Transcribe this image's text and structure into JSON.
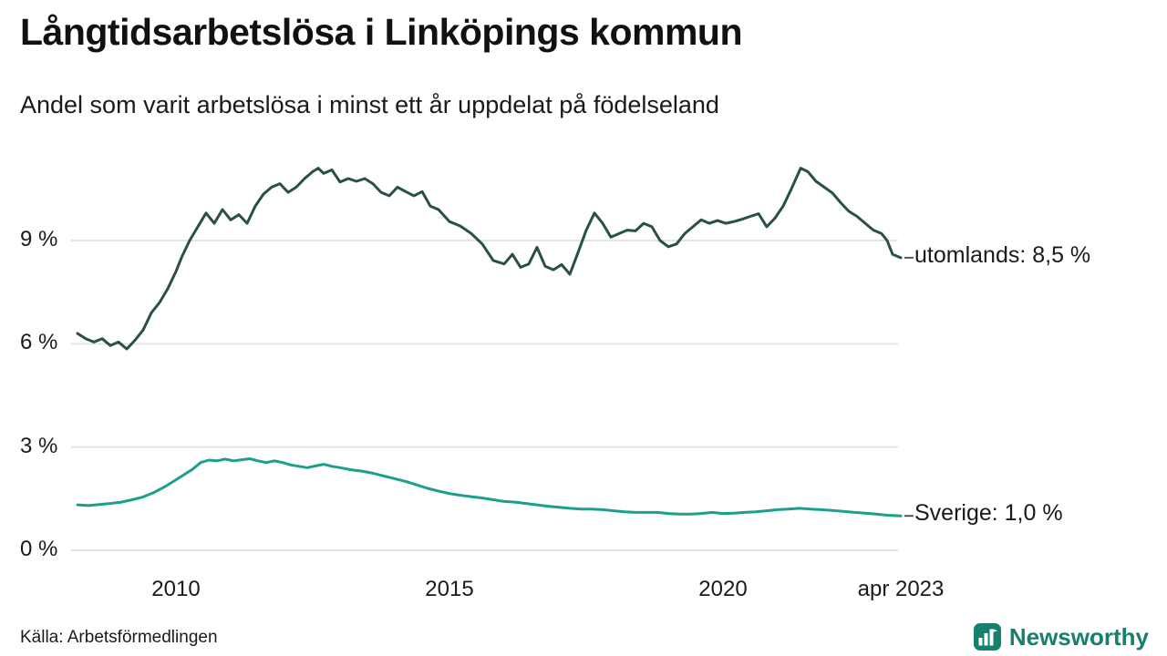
{
  "header": {
    "title": "Långtidsarbetslösa i Linköpings kommun",
    "subtitle": "Andel som varit arbetslösa i minst ett år uppdelat på födelseland"
  },
  "footer": {
    "source": "Källa: Arbetsförmedlingen",
    "brand": "Newsworthy"
  },
  "colors": {
    "utomlands_line": "#2a4f47",
    "sverige_line": "#1aa08b",
    "brand_teal": "#17806c",
    "gridline": "#e4e4e4",
    "text": "#1a1a1a"
  },
  "chart_data": {
    "type": "line",
    "title": "Långtidsarbetslösa i Linköpings kommun",
    "subtitle": "Andel som varit arbetslösa i minst ett år uppdelat på födelseland",
    "unit": "%",
    "grid": "horizontal",
    "legend_position": "right-of-line-ends",
    "x_axis": {
      "range": [
        2008.2,
        2023.42
      ],
      "ticks": [
        {
          "label": "2010",
          "value": 2010
        },
        {
          "label": "2015",
          "value": 2015
        },
        {
          "label": "2020",
          "value": 2020
        },
        {
          "label": "apr 2023",
          "value": 2023.25
        }
      ]
    },
    "y_axis": {
      "range": [
        0,
        11.6
      ],
      "ticks": [
        {
          "label": "0 %",
          "value": 0
        },
        {
          "label": "3 %",
          "value": 3
        },
        {
          "label": "6 %",
          "value": 6
        },
        {
          "label": "9 %",
          "value": 9
        }
      ]
    },
    "series": [
      {
        "name": "utomlands",
        "end_label": "utomlands: 8,5 %",
        "last_value": 8.5,
        "color": "#2a4f47",
        "points": [
          [
            2008.2,
            6.3
          ],
          [
            2008.35,
            6.15
          ],
          [
            2008.5,
            6.05
          ],
          [
            2008.65,
            6.15
          ],
          [
            2008.8,
            5.95
          ],
          [
            2008.95,
            6.05
          ],
          [
            2009.1,
            5.85
          ],
          [
            2009.25,
            6.1
          ],
          [
            2009.4,
            6.4
          ],
          [
            2009.55,
            6.9
          ],
          [
            2009.7,
            7.2
          ],
          [
            2009.85,
            7.6
          ],
          [
            2010.0,
            8.1
          ],
          [
            2010.1,
            8.5
          ],
          [
            2010.25,
            9.0
          ],
          [
            2010.4,
            9.4
          ],
          [
            2010.55,
            9.8
          ],
          [
            2010.7,
            9.5
          ],
          [
            2010.85,
            9.9
          ],
          [
            2011.0,
            9.6
          ],
          [
            2011.15,
            9.75
          ],
          [
            2011.3,
            9.5
          ],
          [
            2011.45,
            10.0
          ],
          [
            2011.6,
            10.35
          ],
          [
            2011.75,
            10.55
          ],
          [
            2011.9,
            10.65
          ],
          [
            2012.05,
            10.4
          ],
          [
            2012.2,
            10.55
          ],
          [
            2012.35,
            10.8
          ],
          [
            2012.5,
            11.0
          ],
          [
            2012.6,
            11.1
          ],
          [
            2012.7,
            10.95
          ],
          [
            2012.85,
            11.05
          ],
          [
            2013.0,
            10.7
          ],
          [
            2013.15,
            10.8
          ],
          [
            2013.3,
            10.72
          ],
          [
            2013.45,
            10.8
          ],
          [
            2013.6,
            10.65
          ],
          [
            2013.75,
            10.4
          ],
          [
            2013.9,
            10.3
          ],
          [
            2014.05,
            10.55
          ],
          [
            2014.2,
            10.42
          ],
          [
            2014.35,
            10.3
          ],
          [
            2014.5,
            10.42
          ],
          [
            2014.65,
            10.0
          ],
          [
            2014.8,
            9.9
          ],
          [
            2015.0,
            9.55
          ],
          [
            2015.2,
            9.42
          ],
          [
            2015.4,
            9.2
          ],
          [
            2015.6,
            8.9
          ],
          [
            2015.8,
            8.42
          ],
          [
            2016.0,
            8.32
          ],
          [
            2016.15,
            8.6
          ],
          [
            2016.3,
            8.22
          ],
          [
            2016.45,
            8.32
          ],
          [
            2016.6,
            8.8
          ],
          [
            2016.75,
            8.25
          ],
          [
            2016.9,
            8.15
          ],
          [
            2017.05,
            8.3
          ],
          [
            2017.2,
            8.02
          ],
          [
            2017.35,
            8.65
          ],
          [
            2017.5,
            9.3
          ],
          [
            2017.65,
            9.8
          ],
          [
            2017.8,
            9.5
          ],
          [
            2017.95,
            9.1
          ],
          [
            2018.1,
            9.2
          ],
          [
            2018.25,
            9.3
          ],
          [
            2018.4,
            9.28
          ],
          [
            2018.55,
            9.5
          ],
          [
            2018.7,
            9.4
          ],
          [
            2018.85,
            9.0
          ],
          [
            2019.0,
            8.82
          ],
          [
            2019.15,
            8.9
          ],
          [
            2019.3,
            9.2
          ],
          [
            2019.45,
            9.4
          ],
          [
            2019.6,
            9.6
          ],
          [
            2019.75,
            9.5
          ],
          [
            2019.9,
            9.58
          ],
          [
            2020.05,
            9.5
          ],
          [
            2020.2,
            9.55
          ],
          [
            2020.35,
            9.62
          ],
          [
            2020.5,
            9.7
          ],
          [
            2020.65,
            9.78
          ],
          [
            2020.8,
            9.4
          ],
          [
            2020.95,
            9.65
          ],
          [
            2021.1,
            10.0
          ],
          [
            2021.25,
            10.5
          ],
          [
            2021.42,
            11.1
          ],
          [
            2021.55,
            11.0
          ],
          [
            2021.7,
            10.72
          ],
          [
            2021.85,
            10.55
          ],
          [
            2022.0,
            10.38
          ],
          [
            2022.15,
            10.1
          ],
          [
            2022.3,
            9.85
          ],
          [
            2022.45,
            9.7
          ],
          [
            2022.6,
            9.5
          ],
          [
            2022.75,
            9.3
          ],
          [
            2022.9,
            9.2
          ],
          [
            2023.0,
            9.0
          ],
          [
            2023.1,
            8.6
          ],
          [
            2023.25,
            8.5
          ]
        ]
      },
      {
        "name": "Sverige",
        "end_label": "Sverige: 1,0 %",
        "last_value": 1.0,
        "color": "#1aa08b",
        "points": [
          [
            2008.2,
            1.32
          ],
          [
            2008.4,
            1.3
          ],
          [
            2008.6,
            1.33
          ],
          [
            2008.8,
            1.36
          ],
          [
            2009.0,
            1.4
          ],
          [
            2009.2,
            1.47
          ],
          [
            2009.4,
            1.55
          ],
          [
            2009.6,
            1.68
          ],
          [
            2009.8,
            1.85
          ],
          [
            2010.0,
            2.05
          ],
          [
            2010.15,
            2.2
          ],
          [
            2010.3,
            2.35
          ],
          [
            2010.45,
            2.55
          ],
          [
            2010.6,
            2.62
          ],
          [
            2010.75,
            2.6
          ],
          [
            2010.9,
            2.65
          ],
          [
            2011.05,
            2.6
          ],
          [
            2011.2,
            2.63
          ],
          [
            2011.35,
            2.66
          ],
          [
            2011.5,
            2.6
          ],
          [
            2011.65,
            2.55
          ],
          [
            2011.8,
            2.6
          ],
          [
            2011.95,
            2.55
          ],
          [
            2012.1,
            2.48
          ],
          [
            2012.25,
            2.44
          ],
          [
            2012.4,
            2.4
          ],
          [
            2012.55,
            2.45
          ],
          [
            2012.7,
            2.5
          ],
          [
            2012.85,
            2.44
          ],
          [
            2013.0,
            2.4
          ],
          [
            2013.2,
            2.34
          ],
          [
            2013.4,
            2.3
          ],
          [
            2013.6,
            2.24
          ],
          [
            2013.8,
            2.16
          ],
          [
            2014.0,
            2.08
          ],
          [
            2014.2,
            2.0
          ],
          [
            2014.4,
            1.9
          ],
          [
            2014.6,
            1.8
          ],
          [
            2014.8,
            1.72
          ],
          [
            2015.0,
            1.65
          ],
          [
            2015.2,
            1.6
          ],
          [
            2015.4,
            1.56
          ],
          [
            2015.6,
            1.52
          ],
          [
            2015.8,
            1.47
          ],
          [
            2016.0,
            1.42
          ],
          [
            2016.2,
            1.4
          ],
          [
            2016.4,
            1.36
          ],
          [
            2016.6,
            1.32
          ],
          [
            2016.8,
            1.28
          ],
          [
            2017.0,
            1.25
          ],
          [
            2017.2,
            1.22
          ],
          [
            2017.4,
            1.2
          ],
          [
            2017.6,
            1.2
          ],
          [
            2017.8,
            1.18
          ],
          [
            2018.0,
            1.15
          ],
          [
            2018.2,
            1.12
          ],
          [
            2018.4,
            1.1
          ],
          [
            2018.6,
            1.1
          ],
          [
            2018.8,
            1.1
          ],
          [
            2019.0,
            1.07
          ],
          [
            2019.2,
            1.05
          ],
          [
            2019.4,
            1.05
          ],
          [
            2019.6,
            1.07
          ],
          [
            2019.8,
            1.1
          ],
          [
            2020.0,
            1.07
          ],
          [
            2020.2,
            1.08
          ],
          [
            2020.4,
            1.1
          ],
          [
            2020.6,
            1.12
          ],
          [
            2020.8,
            1.15
          ],
          [
            2021.0,
            1.18
          ],
          [
            2021.2,
            1.2
          ],
          [
            2021.4,
            1.22
          ],
          [
            2021.6,
            1.2
          ],
          [
            2021.8,
            1.18
          ],
          [
            2022.0,
            1.16
          ],
          [
            2022.2,
            1.13
          ],
          [
            2022.4,
            1.1
          ],
          [
            2022.6,
            1.08
          ],
          [
            2022.8,
            1.05
          ],
          [
            2023.0,
            1.02
          ],
          [
            2023.25,
            1.0
          ]
        ]
      }
    ]
  }
}
